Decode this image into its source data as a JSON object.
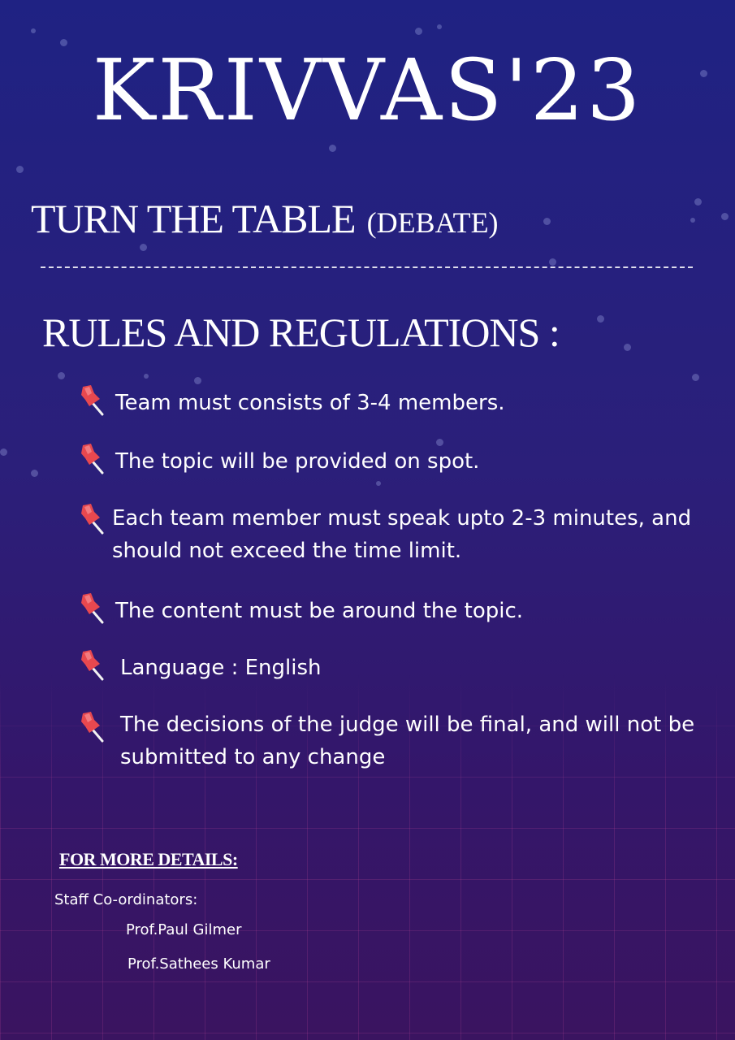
{
  "event_title": "KRIVVAS'23",
  "event": {
    "name": "TURN THE TABLE",
    "category": "(DEBATE)"
  },
  "rules_heading": "RULES AND REGULATIONS :",
  "rules": [
    {
      "text": "Team must consists of 3-4 members."
    },
    {
      "text": "The topic will be provided on spot."
    },
    {
      "text": "Each team member must speak upto 2-3 minutes, and should not exceed the time limit."
    },
    {
      "text": "The content must be around the topic."
    },
    {
      "text": "Language : English"
    },
    {
      "text": "The decisions of the judge will be final, and will not be submitted to any change"
    }
  ],
  "details": {
    "heading": "FOR MORE DETAILS:",
    "staff_label": "Staff Co-ordinators:",
    "coordinators": [
      "Prof.Paul Gilmer",
      "Prof.Sathees Kumar"
    ]
  },
  "colors": {
    "pin": "#e8484f",
    "pin_needle": "#f2f2f2"
  },
  "icons": {
    "bullet": "pushpin-icon"
  }
}
